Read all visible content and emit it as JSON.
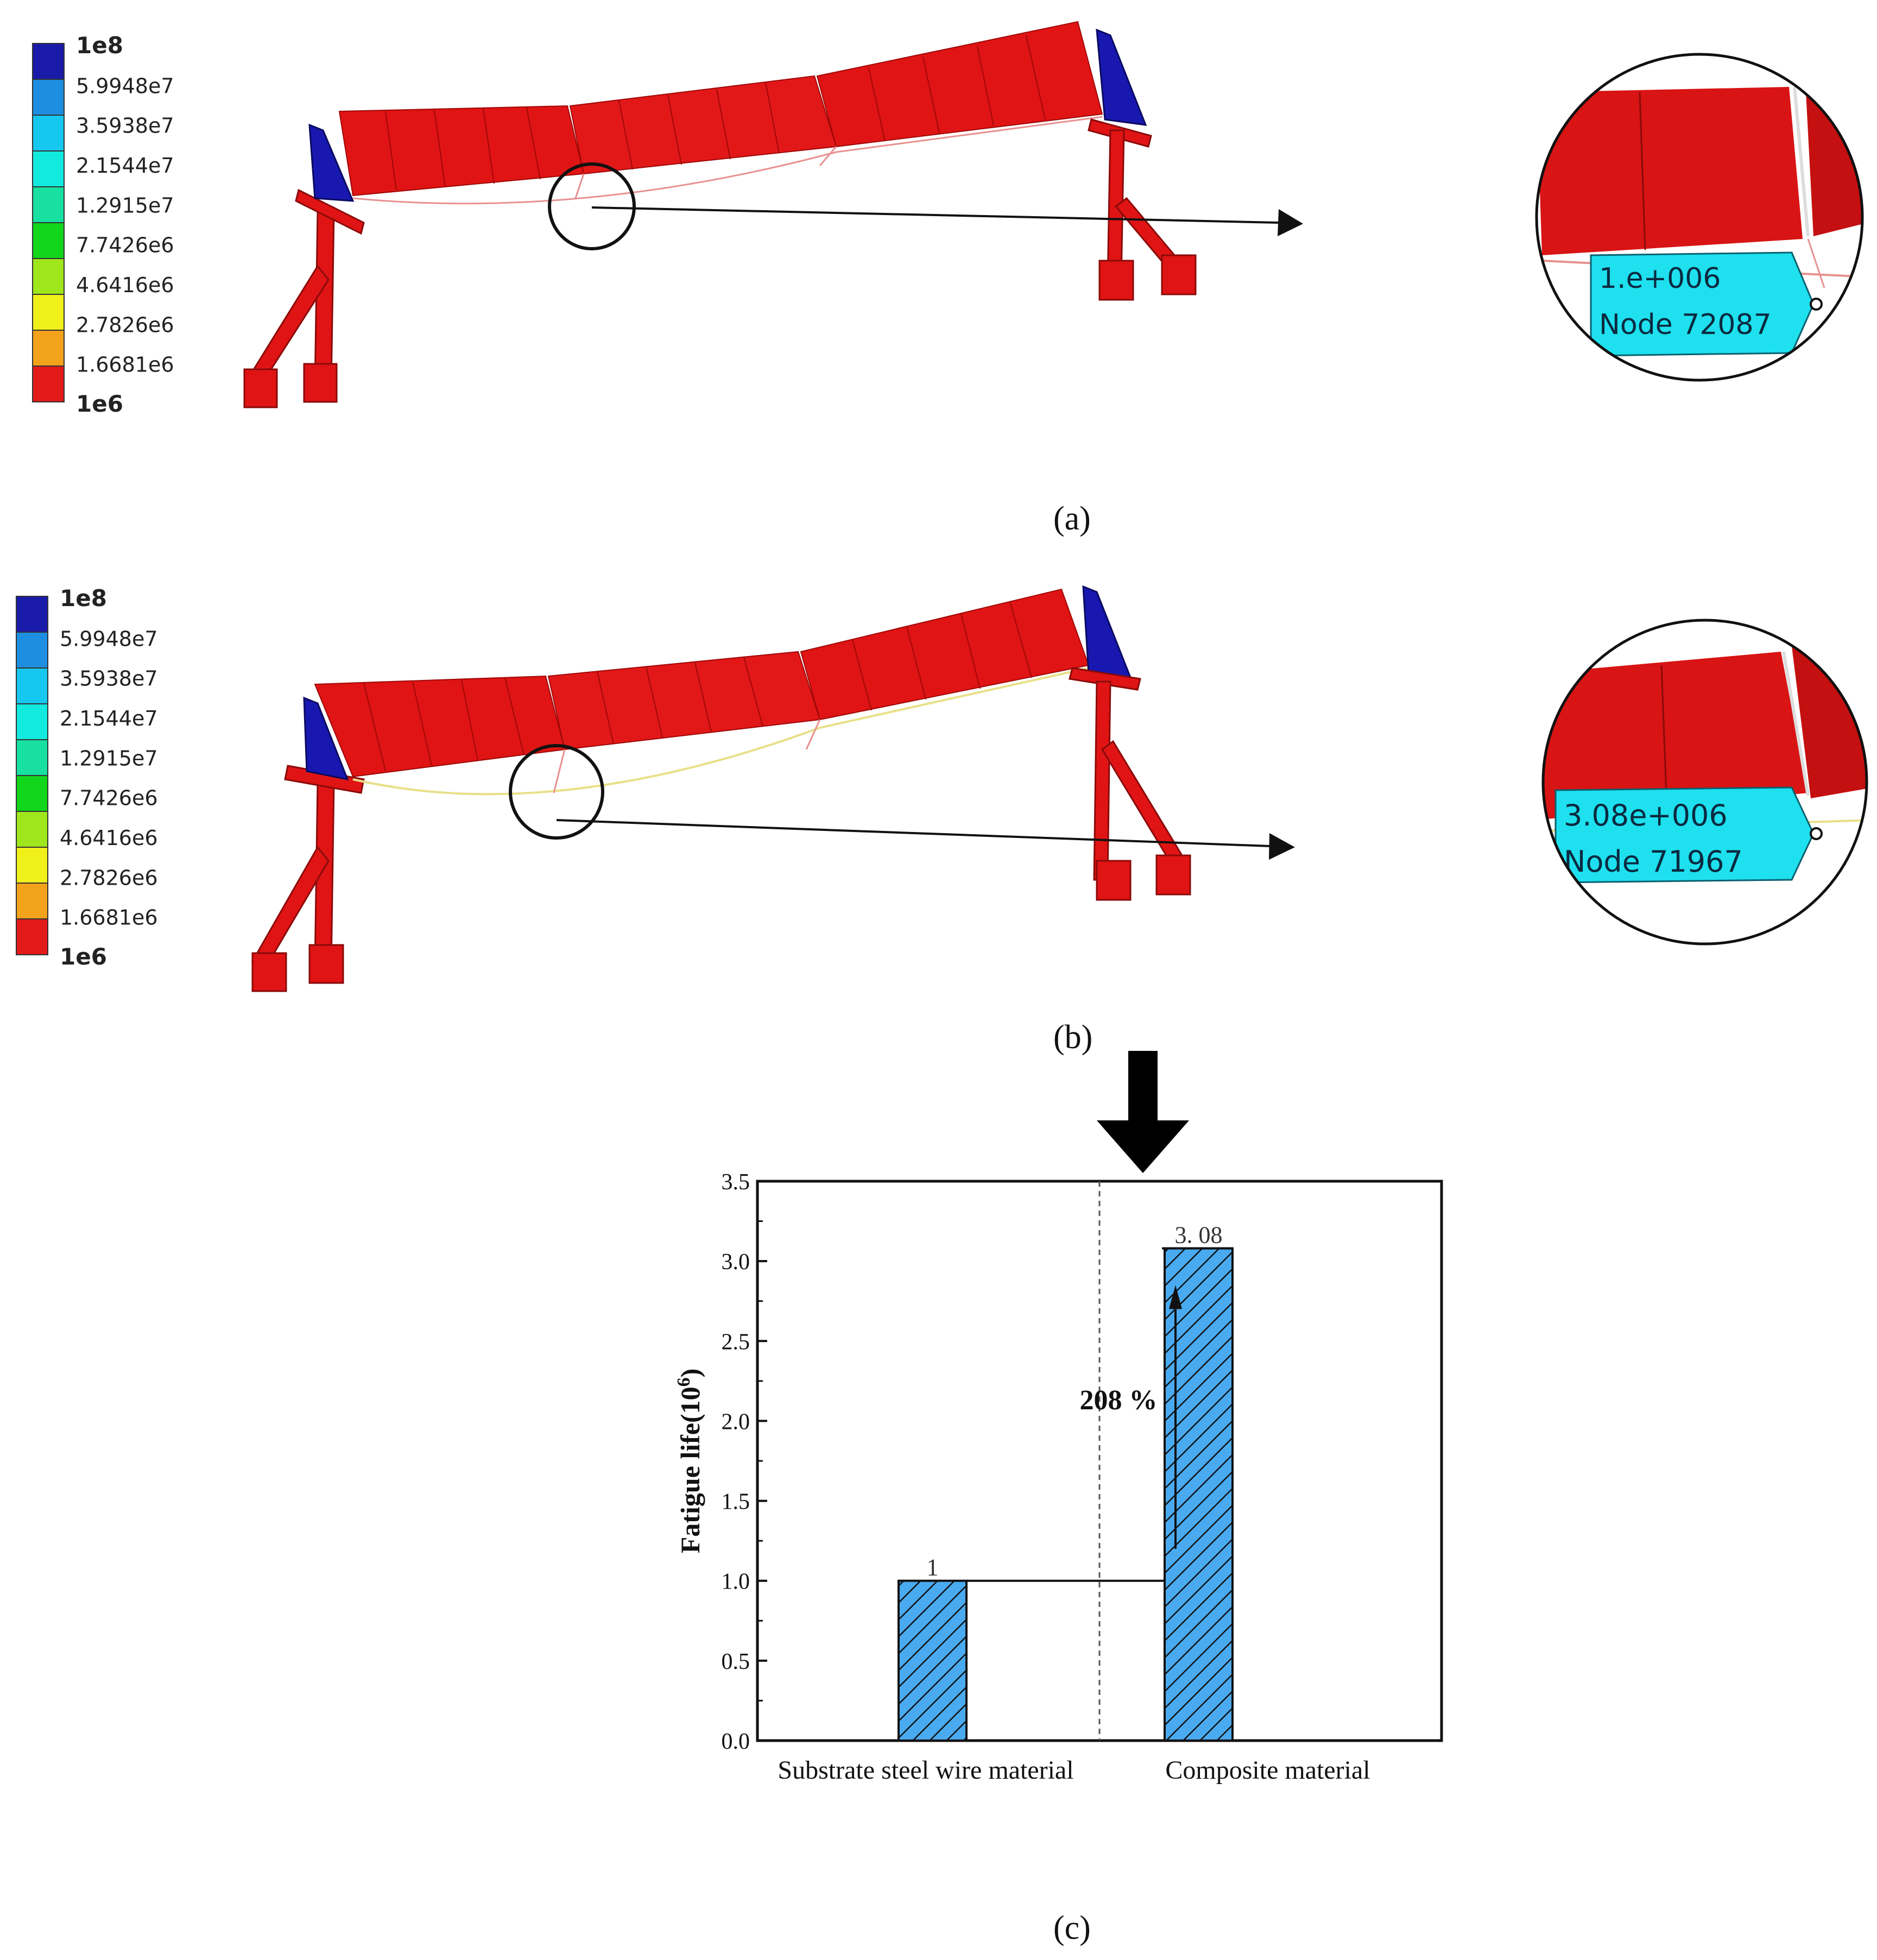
{
  "legend": {
    "labels": [
      "1e8",
      "5.9948e7",
      "3.5938e7",
      "2.1544e7",
      "1.2915e7",
      "7.7426e6",
      "4.6416e6",
      "2.7826e6",
      "1.6681e6",
      "1e6"
    ],
    "colors": [
      "#1a1aa8",
      "#1e8fe0",
      "#16c8f0",
      "#12eadf",
      "#18e0a0",
      "#12d61c",
      "#9fe61c",
      "#f0f01a",
      "#f3a21c",
      "#e21a1a"
    ]
  },
  "panel_a": {
    "caption": "(a)",
    "zoom_value": "1.e+006",
    "zoom_node": "Node 72087"
  },
  "panel_b": {
    "caption": "(b)",
    "zoom_value": "3.08e+006",
    "zoom_node": "Node 71967"
  },
  "panel_c": {
    "caption": "(c)"
  },
  "colors": {
    "structure_red": "#e01414",
    "support_blue": "#1818b0",
    "bar_fill": "#4aaaf0",
    "label_cyan": "#1ee0ee"
  },
  "chart_data": {
    "type": "bar",
    "categories": [
      "Substrate steel wire material",
      "Composite material"
    ],
    "values": [
      1,
      3.08
    ],
    "value_labels": [
      "1",
      "3. 08"
    ],
    "ylabel": "Fatigue life(10",
    "ylabel_sup": "6",
    "ylabel_end": ")",
    "ylim": [
      0,
      3.5
    ],
    "yticks": [
      "0.0",
      "0.5",
      "1.0",
      "1.5",
      "2.0",
      "2.5",
      "3.0",
      "3.5"
    ],
    "annotation": "208 %",
    "bar_pattern": "diagonal-hatch"
  }
}
